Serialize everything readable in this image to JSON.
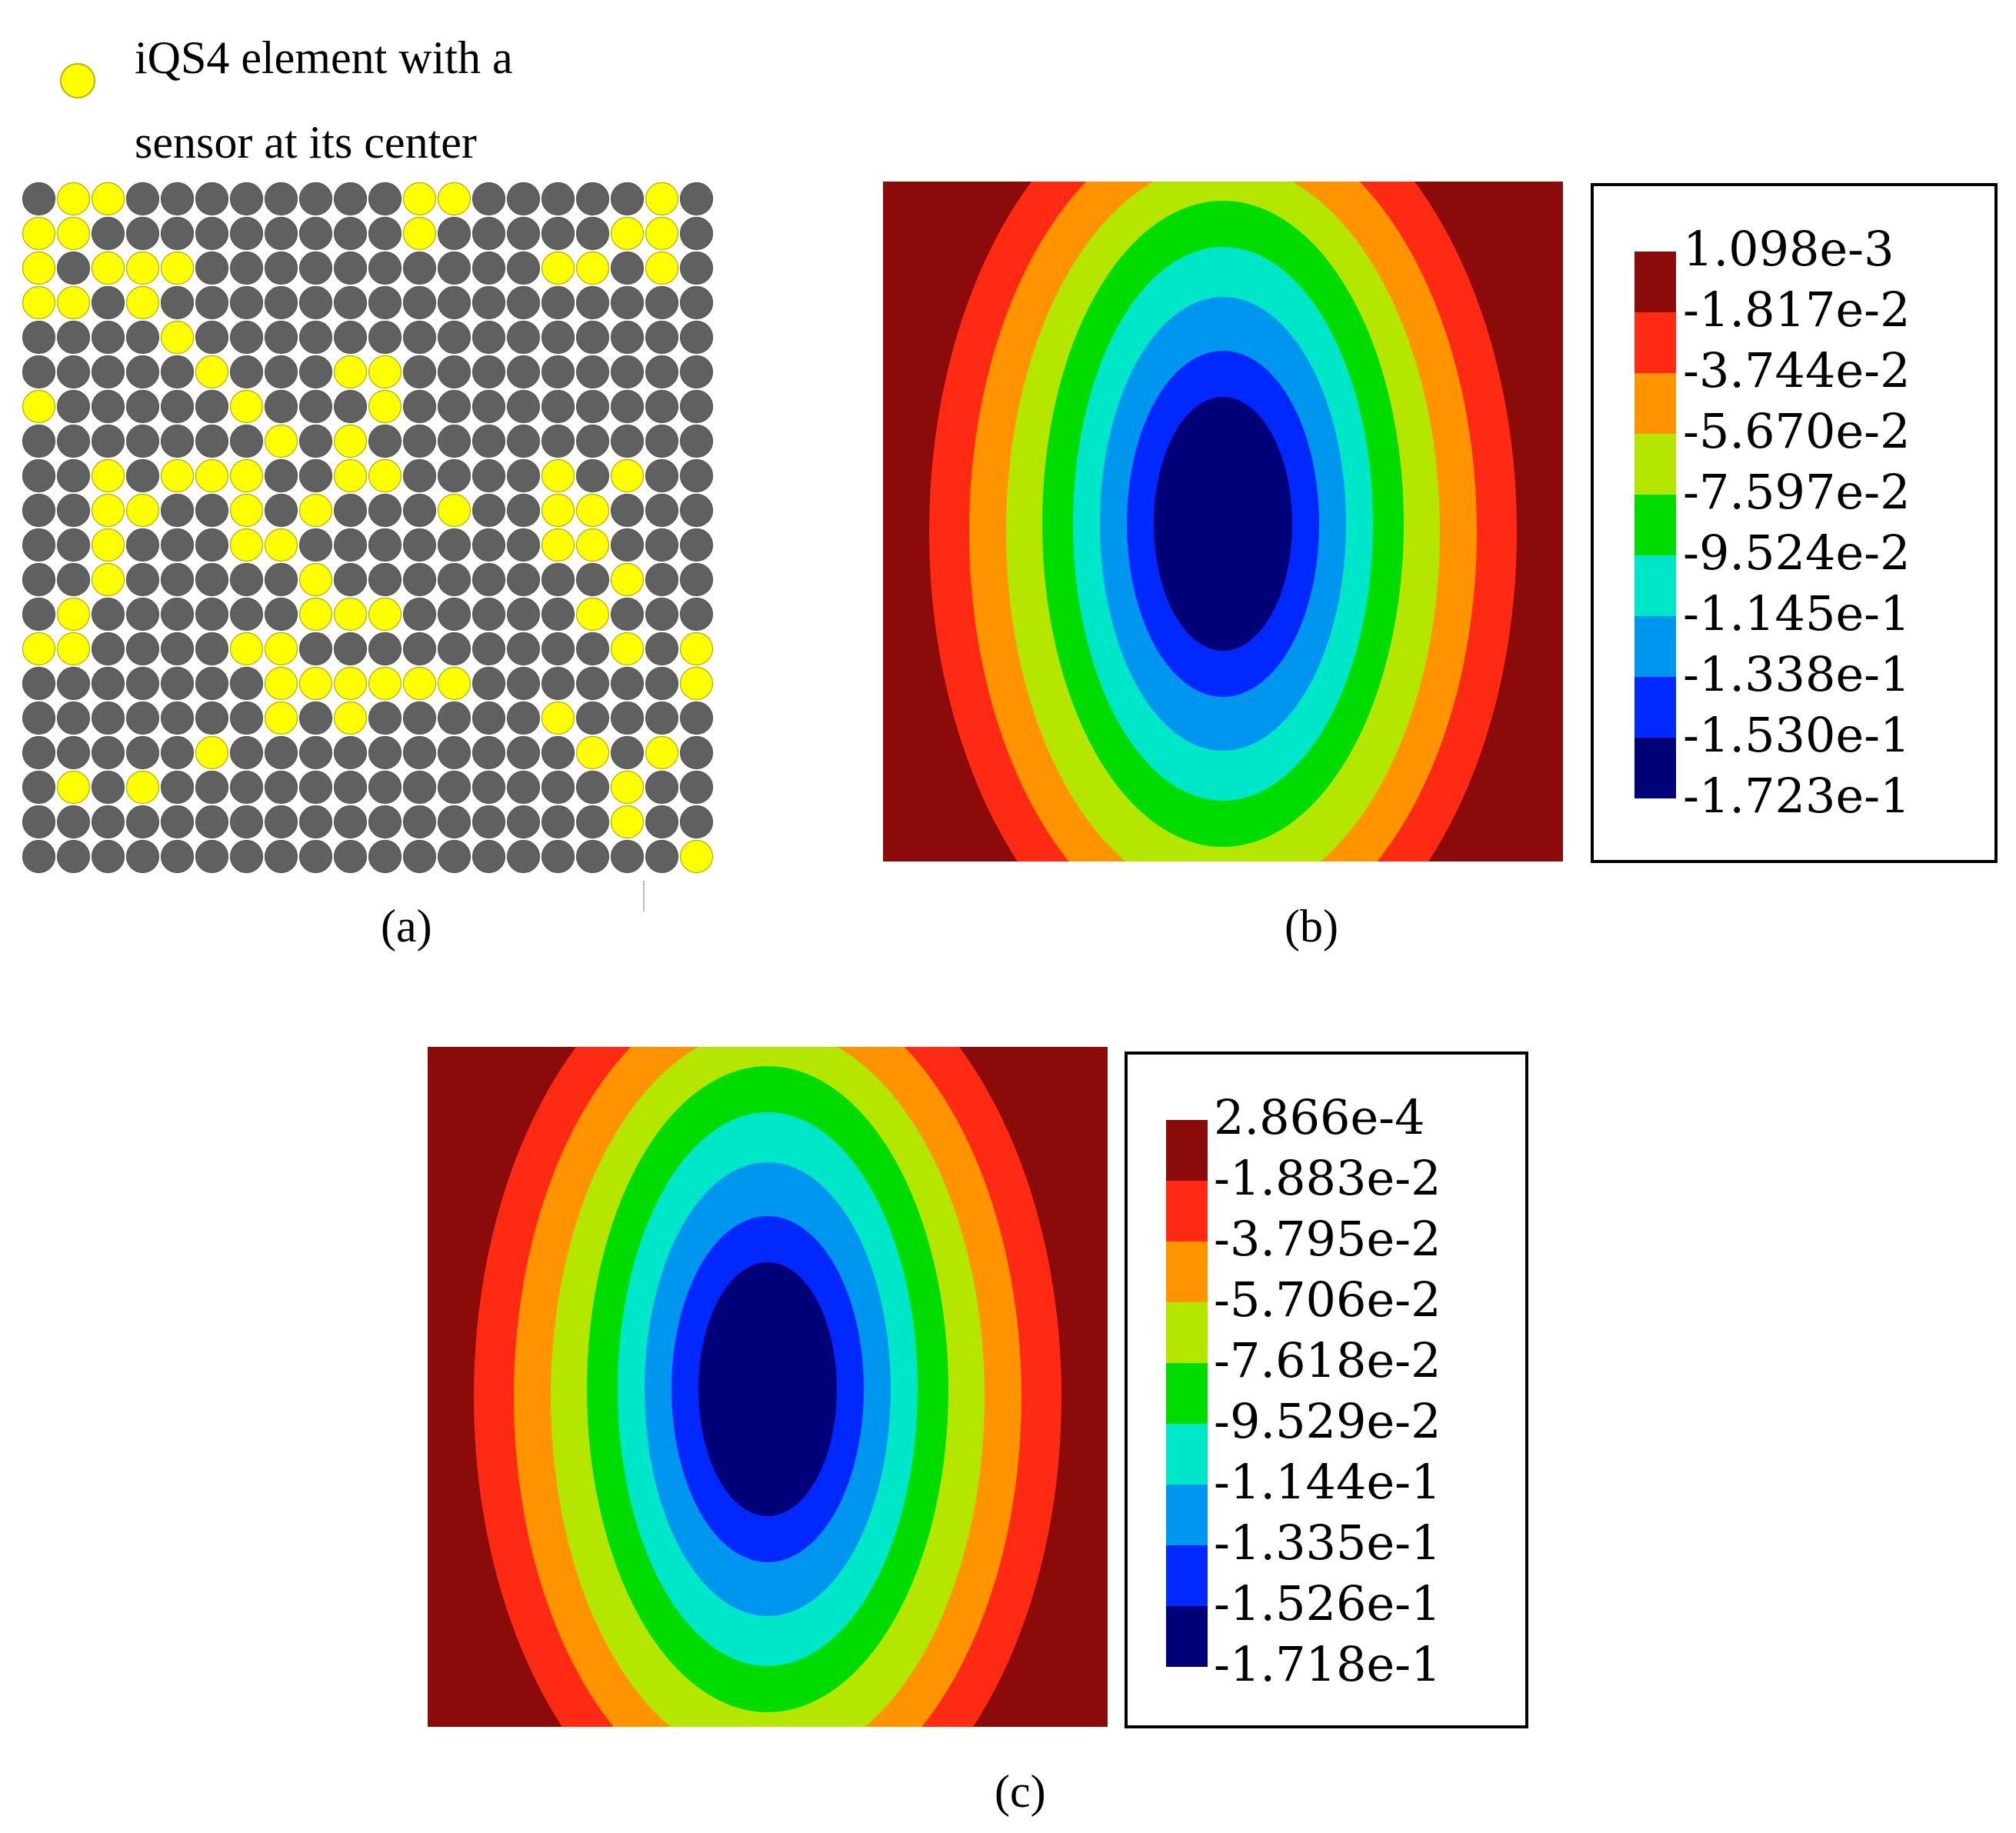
{
  "legend": {
    "icon": "yellow-circle-icon",
    "line1": "iQS4 element with a",
    "line2": "sensor at its center"
  },
  "grid": {
    "rows": 20,
    "cols": 20,
    "sensor_color": "#ffff00",
    "element_color": "#606060",
    "sensors": [
      [
        0,
        1
      ],
      [
        0,
        2
      ],
      [
        0,
        11
      ],
      [
        0,
        12
      ],
      [
        0,
        18
      ],
      [
        1,
        0
      ],
      [
        1,
        1
      ],
      [
        1,
        11
      ],
      [
        1,
        17
      ],
      [
        1,
        18
      ],
      [
        2,
        0
      ],
      [
        2,
        2
      ],
      [
        2,
        3
      ],
      [
        2,
        4
      ],
      [
        2,
        15
      ],
      [
        2,
        16
      ],
      [
        2,
        18
      ],
      [
        3,
        0
      ],
      [
        3,
        1
      ],
      [
        3,
        3
      ],
      [
        4,
        4
      ],
      [
        5,
        5
      ],
      [
        5,
        9
      ],
      [
        5,
        10
      ],
      [
        6,
        0
      ],
      [
        6,
        6
      ],
      [
        6,
        10
      ],
      [
        7,
        7
      ],
      [
        7,
        9
      ],
      [
        8,
        2
      ],
      [
        8,
        4
      ],
      [
        8,
        5
      ],
      [
        8,
        6
      ],
      [
        8,
        9
      ],
      [
        8,
        10
      ],
      [
        8,
        15
      ],
      [
        8,
        17
      ],
      [
        9,
        2
      ],
      [
        9,
        3
      ],
      [
        9,
        6
      ],
      [
        9,
        8
      ],
      [
        9,
        12
      ],
      [
        9,
        15
      ],
      [
        9,
        16
      ],
      [
        10,
        2
      ],
      [
        10,
        6
      ],
      [
        10,
        7
      ],
      [
        10,
        15
      ],
      [
        10,
        16
      ],
      [
        11,
        2
      ],
      [
        11,
        8
      ],
      [
        11,
        17
      ],
      [
        12,
        1
      ],
      [
        12,
        8
      ],
      [
        12,
        9
      ],
      [
        12,
        10
      ],
      [
        12,
        16
      ],
      [
        13,
        0
      ],
      [
        13,
        1
      ],
      [
        13,
        6
      ],
      [
        13,
        7
      ],
      [
        13,
        17
      ],
      [
        13,
        19
      ],
      [
        14,
        7
      ],
      [
        14,
        8
      ],
      [
        14,
        9
      ],
      [
        14,
        10
      ],
      [
        14,
        11
      ],
      [
        14,
        12
      ],
      [
        14,
        19
      ],
      [
        15,
        7
      ],
      [
        15,
        9
      ],
      [
        15,
        15
      ],
      [
        16,
        5
      ],
      [
        16,
        16
      ],
      [
        16,
        18
      ],
      [
        17,
        1
      ],
      [
        17,
        3
      ],
      [
        17,
        17
      ],
      [
        18,
        17
      ],
      [
        19,
        19
      ]
    ]
  },
  "captions": {
    "a": "(a)",
    "b": "(b)",
    "c": "(c)"
  },
  "contour_colors": [
    "#8b0a0a",
    "#ff2a14",
    "#ff9400",
    "#b4e600",
    "#00dc00",
    "#00e6c8",
    "#0096f0",
    "#0028ff",
    "#000078"
  ],
  "scale_b": {
    "labels": [
      "1.098e-3",
      "-1.817e-2",
      "-3.744e-2",
      "-5.670e-2",
      "-7.597e-2",
      "-9.524e-2",
      "-1.145e-1",
      "-1.338e-1",
      "-1.530e-1",
      "-1.723e-1"
    ]
  },
  "scale_c": {
    "labels": [
      "2.866e-4",
      "-1.883e-2",
      "-3.795e-2",
      "-5.706e-2",
      "-7.618e-2",
      "-9.529e-2",
      "-1.144e-1",
      "-1.335e-1",
      "-1.526e-1",
      "-1.718e-1"
    ]
  }
}
